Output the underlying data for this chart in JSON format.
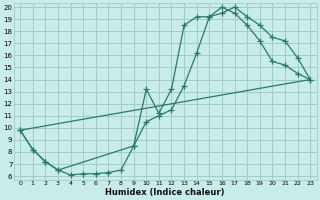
{
  "xlabel": "Humidex (Indice chaleur)",
  "bg_color": "#c8ece8",
  "grid_color": "#a0ccc8",
  "line_color": "#2a7a6a",
  "xlim": [
    -0.5,
    23.5
  ],
  "ylim": [
    5.7,
    20.3
  ],
  "xticks": [
    0,
    1,
    2,
    3,
    4,
    5,
    6,
    7,
    8,
    9,
    10,
    11,
    12,
    13,
    14,
    15,
    16,
    17,
    18,
    19,
    20,
    21,
    22,
    23
  ],
  "yticks": [
    6,
    7,
    8,
    9,
    10,
    11,
    12,
    13,
    14,
    15,
    16,
    17,
    18,
    19,
    20
  ],
  "line1_x": [
    0,
    1,
    2,
    3,
    4,
    5,
    6,
    7,
    8,
    9,
    10,
    11,
    12,
    13,
    14,
    15,
    16,
    17,
    18,
    19,
    20,
    21,
    22,
    23
  ],
  "line1_y": [
    9.8,
    8.2,
    7.2,
    6.5,
    6.1,
    6.2,
    6.2,
    6.3,
    6.5,
    8.5,
    13.2,
    11.2,
    13.2,
    18.5,
    19.2,
    19.2,
    20.0,
    19.5,
    18.5,
    17.2,
    15.5,
    15.2,
    14.5,
    14.0
  ],
  "line2_x": [
    0,
    1,
    2,
    3,
    9,
    10,
    11,
    12,
    13,
    14,
    15,
    16,
    17,
    18,
    19,
    20,
    21,
    22,
    23
  ],
  "line2_y": [
    9.8,
    8.2,
    7.2,
    6.5,
    8.5,
    10.5,
    11.0,
    11.5,
    13.5,
    16.2,
    19.2,
    19.5,
    20.0,
    19.2,
    18.5,
    17.5,
    17.2,
    15.8,
    14.0
  ],
  "line3_x": [
    0,
    23
  ],
  "line3_y": [
    9.8,
    14.0
  ]
}
